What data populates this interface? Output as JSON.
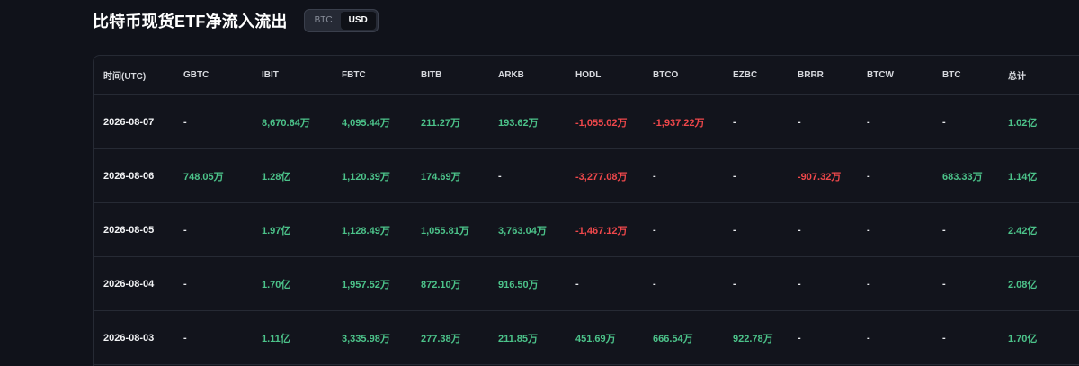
{
  "header": {
    "title": "比特币现货ETF净流入流出",
    "toggle": {
      "options": [
        "BTC",
        "USD"
      ],
      "active": "USD"
    }
  },
  "table": {
    "columns": [
      "时间(UTC)",
      "GBTC",
      "IBIT",
      "FBTC",
      "BITB",
      "ARKB",
      "HODL",
      "BTCO",
      "EZBC",
      "BRRR",
      "BTCW",
      "BTC",
      "总计"
    ],
    "rows": [
      [
        "2026-08-07",
        "-",
        "8,670.64万",
        "4,095.44万",
        "211.27万",
        "193.62万",
        "-1,055.02万",
        "-1,937.22万",
        "-",
        "-",
        "-",
        "-",
        "1.02亿"
      ],
      [
        "2026-08-06",
        "748.05万",
        "1.28亿",
        "1,120.39万",
        "174.69万",
        "-",
        "-3,277.08万",
        "-",
        "-",
        "-907.32万",
        "-",
        "683.33万",
        "1.14亿"
      ],
      [
        "2026-08-05",
        "-",
        "1.97亿",
        "1,128.49万",
        "1,055.81万",
        "3,763.04万",
        "-1,467.12万",
        "-",
        "-",
        "-",
        "-",
        "-",
        "2.42亿"
      ],
      [
        "2026-08-04",
        "-",
        "1.70亿",
        "1,957.52万",
        "872.10万",
        "916.50万",
        "-",
        "-",
        "-",
        "-",
        "-",
        "-",
        "2.08亿"
      ],
      [
        "2026-08-03",
        "-",
        "1.11亿",
        "3,335.98万",
        "277.38万",
        "211.85万",
        "451.69万",
        "666.54万",
        "922.78万",
        "-",
        "-",
        "-",
        "1.70亿"
      ]
    ]
  },
  "colors": {
    "background": "#10121a",
    "positive": "#4cc38a",
    "negative": "#f0484b",
    "neutral": "#e8eaed"
  }
}
